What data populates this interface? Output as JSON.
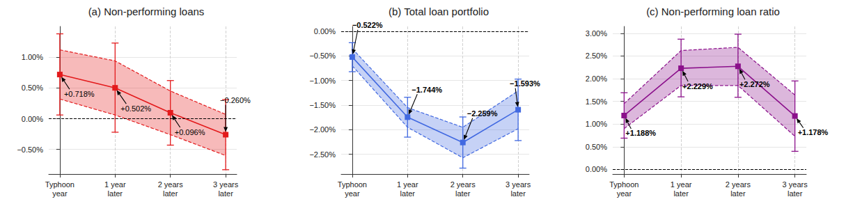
{
  "chart_data": [
    {
      "type": "line",
      "title": "(a) Non-performing loans",
      "categories": [
        "Typhoon\nyear",
        "1 year\nlater",
        "2 years\nlater",
        "3 years\nlater"
      ],
      "values": [
        0.718,
        0.502,
        0.096,
        -0.26
      ],
      "value_labels": [
        "+0.718%",
        "+0.502%",
        "+0.096%",
        "−0.260%"
      ],
      "error_low": [
        0.06,
        -0.22,
        -0.43,
        -0.83
      ],
      "error_high": [
        1.38,
        1.23,
        0.62,
        0.31
      ],
      "band_low": [
        0.32,
        0.06,
        -0.26,
        -0.6
      ],
      "band_high": [
        1.12,
        0.94,
        0.45,
        0.07
      ],
      "hline": 0,
      "color": "#e31a1c",
      "marker": "square",
      "data_labels": true,
      "grid": true,
      "ylim": [
        -0.9,
        1.5
      ],
      "yticks": [
        {
          "value": -0.5,
          "label": "−0.50%"
        },
        {
          "value": 0,
          "label": "0.00%"
        },
        {
          "value": 0.5,
          "label": "0.50%"
        },
        {
          "value": 1.0,
          "label": "1.00%"
        }
      ]
    },
    {
      "type": "line",
      "title": "(b) Total loan portfolio",
      "categories": [
        "Typhoon\nyear",
        "1 year\nlater",
        "2 years\nlater",
        "3 years\nlater"
      ],
      "values": [
        -0.522,
        -1.744,
        -2.259,
        -1.593
      ],
      "value_labels": [
        "−0.522%",
        "−1.744%",
        "−2.259%",
        "−1.593%"
      ],
      "error_low": [
        -0.82,
        -2.15,
        -2.78,
        -2.22
      ],
      "error_high": [
        -0.23,
        -1.34,
        -1.74,
        -0.97
      ],
      "band_low": [
        -0.7,
        -1.95,
        -2.57,
        -1.98
      ],
      "band_high": [
        -0.35,
        -1.55,
        -1.95,
        -1.21
      ],
      "hline": 0,
      "color": "#4169e1",
      "marker": "square",
      "data_labels": true,
      "grid": true,
      "ylim": [
        -2.9,
        0.1
      ],
      "yticks": [
        {
          "value": -2.5,
          "label": "−2.50%"
        },
        {
          "value": -2.0,
          "label": "−2.00%"
        },
        {
          "value": -1.5,
          "label": "−1.50%"
        },
        {
          "value": -1.0,
          "label": "−1.00%"
        },
        {
          "value": -0.5,
          "label": "−0.50%"
        },
        {
          "value": 0,
          "label": "0.00%"
        }
      ]
    },
    {
      "type": "line",
      "title": "(c) Non-performing loan ratio",
      "categories": [
        "Typhoon\nyear",
        "1 year\nlater",
        "2 years\nlater",
        "3 years\nlater"
      ],
      "values": [
        1.188,
        2.229,
        2.272,
        1.178
      ],
      "value_labels": [
        "+1.188%",
        "+2.229%",
        "+2.272%",
        "+1.178%"
      ],
      "error_low": [
        0.69,
        1.6,
        1.59,
        0.4
      ],
      "error_high": [
        1.69,
        2.87,
        2.98,
        1.95
      ],
      "band_low": [
        0.9,
        1.85,
        1.85,
        0.73
      ],
      "band_high": [
        1.45,
        2.62,
        2.69,
        1.64
      ],
      "hline": 0,
      "color": "#8b108b",
      "marker": "square",
      "data_labels": true,
      "grid": true,
      "ylim": [
        -0.1,
        3.15
      ],
      "yticks": [
        {
          "value": 0,
          "label": "0.00%"
        },
        {
          "value": 0.5,
          "label": "0.50%"
        },
        {
          "value": 1.0,
          "label": "1.00%"
        },
        {
          "value": 1.5,
          "label": "1.50%"
        },
        {
          "value": 2.0,
          "label": "2.00%"
        },
        {
          "value": 2.5,
          "label": "2.50%"
        },
        {
          "value": 3.0,
          "label": "3.00%"
        }
      ]
    }
  ]
}
